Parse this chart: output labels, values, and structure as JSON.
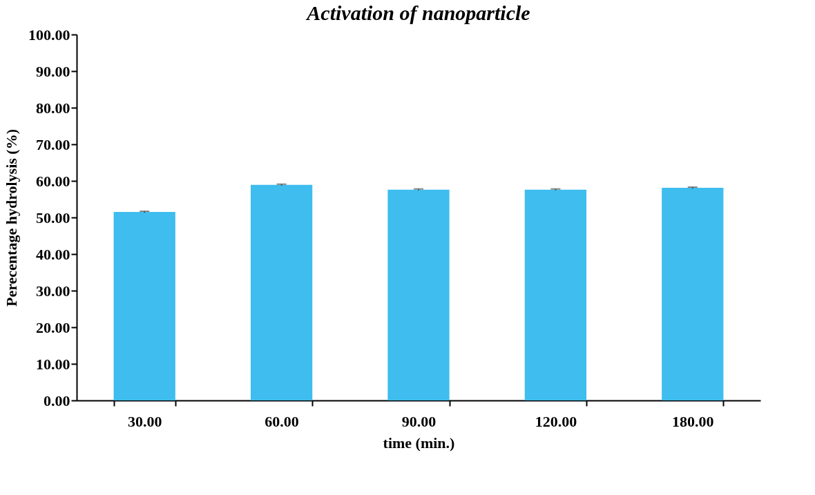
{
  "chart_data": {
    "type": "bar",
    "title": "Activation of nanoparticle",
    "xlabel": "time (min.)",
    "ylabel": "Perecentage hydrolysis (%)",
    "categories": [
      "30.00",
      "60.00",
      "90.00",
      "120.00",
      "180.00"
    ],
    "values": [
      51.5,
      58.9,
      57.6,
      57.6,
      58.1
    ],
    "errors": [
      0.2,
      0.2,
      0.2,
      0.2,
      0.2
    ],
    "color": "#3ebdee",
    "ylim": [
      0,
      100
    ],
    "yticks": [
      {
        "value": 0,
        "label": "0.00"
      },
      {
        "value": 10,
        "label": "10.00"
      },
      {
        "value": 20,
        "label": "20.00"
      },
      {
        "value": 30,
        "label": "30.00"
      },
      {
        "value": 40,
        "label": "40.00"
      },
      {
        "value": 50,
        "label": "50.00"
      },
      {
        "value": 60,
        "label": "60.00"
      },
      {
        "value": 70,
        "label": "70.00"
      },
      {
        "value": 80,
        "label": "80.00"
      },
      {
        "value": 90,
        "label": "90.00"
      },
      {
        "value": 100,
        "label": "100.00"
      }
    ],
    "grid": false
  }
}
